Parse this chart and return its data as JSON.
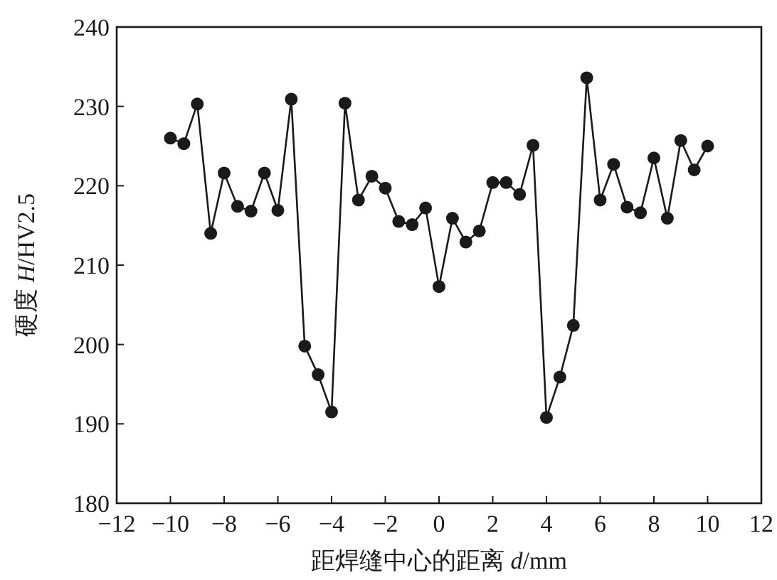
{
  "chart_data": {
    "type": "line",
    "xlabel": "距焊缝中心的距离 d/mm",
    "ylabel": "硬度 H/HV2.5",
    "x": [
      -10,
      -9.5,
      -9,
      -8.5,
      -8,
      -7.5,
      -7,
      -6.5,
      -6,
      -5.5,
      -5,
      -4.5,
      -4,
      -3.5,
      -3,
      -2.5,
      -2,
      -1.5,
      -1,
      -0.5,
      0,
      0.5,
      1,
      1.5,
      2,
      2.5,
      3,
      3.5,
      4,
      4.5,
      5,
      5.5,
      6,
      6.5,
      7,
      7.5,
      8,
      8.5,
      9,
      9.5,
      10
    ],
    "series": [
      {
        "color": "#1a1a1a",
        "values": [
          226,
          225.3,
          230.3,
          214,
          221.6,
          217.4,
          216.8,
          221.6,
          216.9,
          230.9,
          199.8,
          196.2,
          191.5,
          230.4,
          218.2,
          221.2,
          219.7,
          215.5,
          215.1,
          217.2,
          207.3,
          215.9,
          212.9,
          214.3,
          220.4,
          220.4,
          218.9,
          225.1,
          190.8,
          195.9,
          202.4,
          233.6,
          218.2,
          222.7,
          217.3,
          216.6,
          223.5,
          215.9,
          225.7,
          222,
          225
        ]
      }
    ],
    "xlim": [
      -12,
      12
    ],
    "xticks": [
      -12,
      -10,
      -8,
      -6,
      -4,
      -2,
      0,
      2,
      4,
      6,
      8,
      10,
      12
    ],
    "ylim": [
      180,
      240
    ],
    "yticks": [
      180,
      190,
      200,
      210,
      220,
      230,
      240
    ],
    "marker": "circle",
    "line_style": "solid",
    "grid": false
  }
}
